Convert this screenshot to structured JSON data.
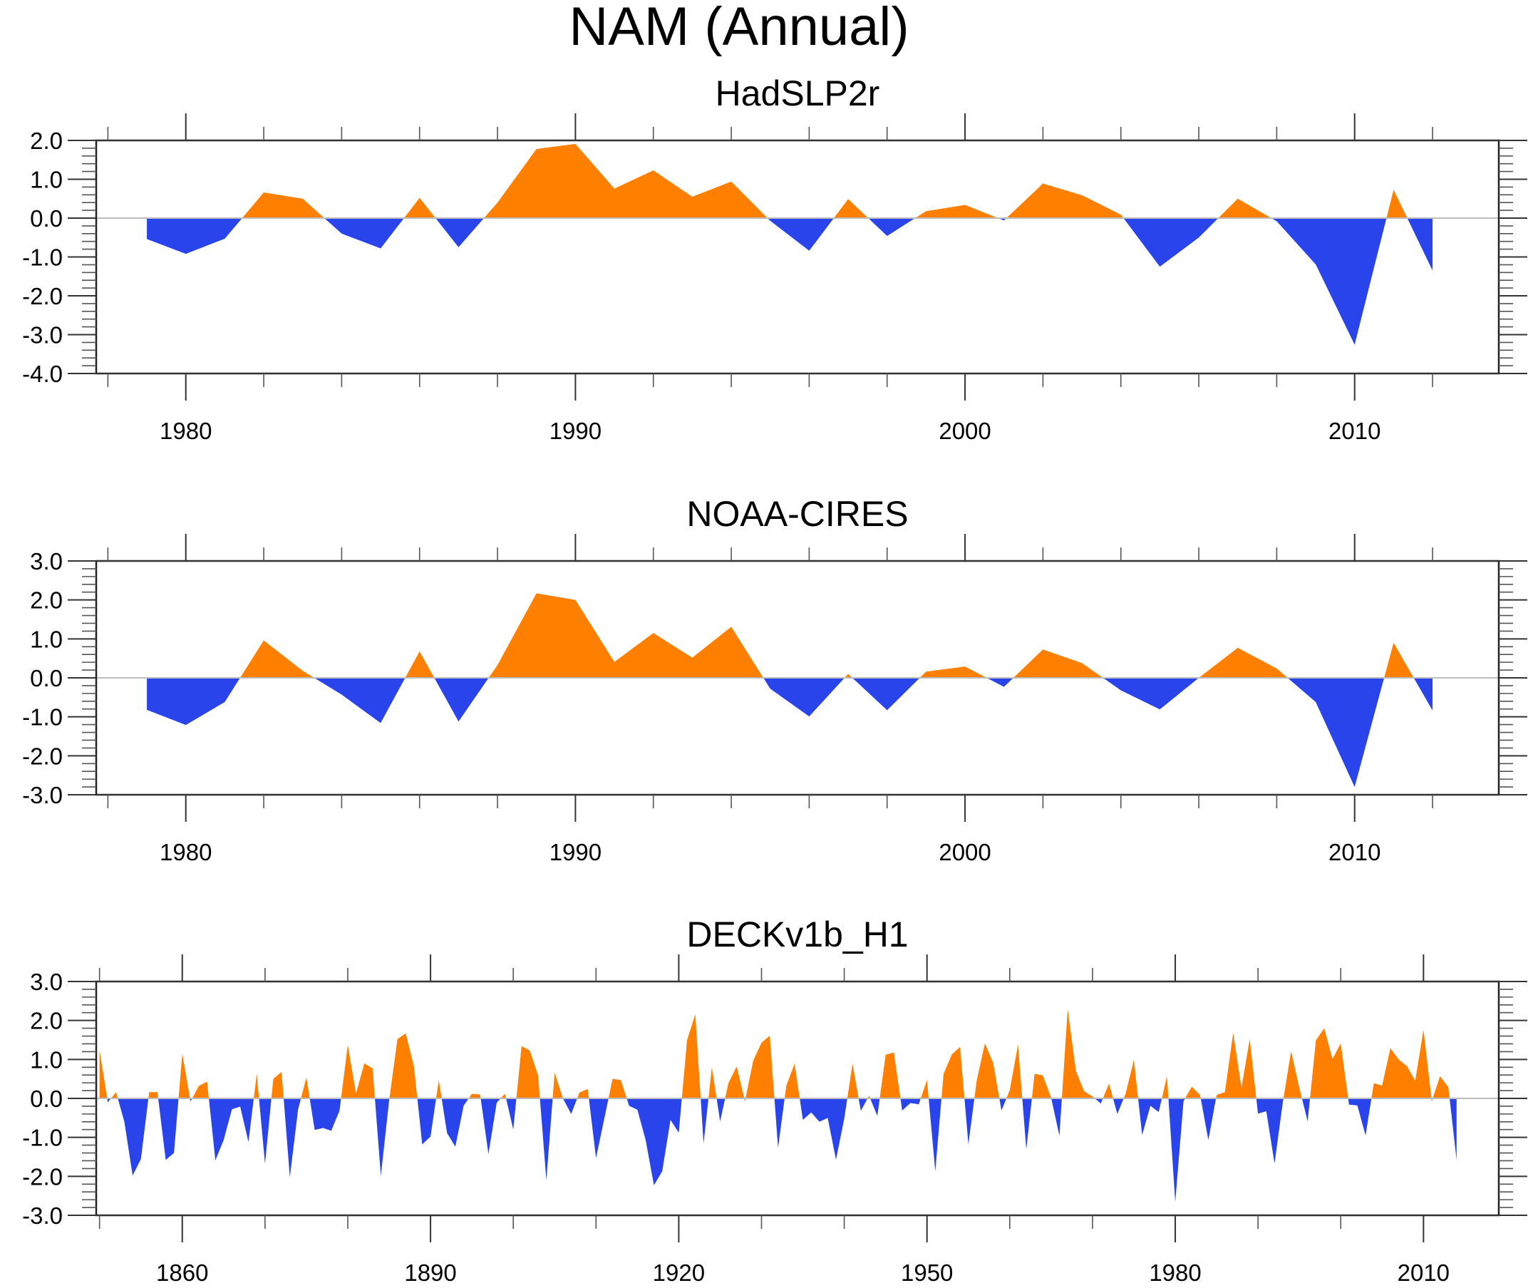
{
  "title": "NAM (Annual)",
  "colors": {
    "positive": "#ff8000",
    "negative": "#2a44eb",
    "zero_line": "#bdbdbd",
    "axis": "#222222"
  },
  "chart_data": [
    {
      "type": "area",
      "title": "HadSLP2r",
      "xlabel": "",
      "ylabel": "",
      "xlim": [
        1977.7,
        2013.7
      ],
      "ylim": [
        -4.0,
        2.0
      ],
      "y_ticks": [
        2.0,
        1.0,
        0.0,
        -1.0,
        -2.0,
        -3.0,
        -4.0
      ],
      "y_tick_labels": [
        "2.0",
        "1.0",
        "0.0",
        "-1.0",
        "-2.0",
        "-3.0",
        "-4.0"
      ],
      "y_minor_step": 0.2,
      "x_major_ticks": [
        1980,
        1990,
        2000,
        2010
      ],
      "x_tick_labels": [
        "1980",
        "1990",
        "2000",
        "2010"
      ],
      "x_minor_step": 2,
      "fill_above_zero": "positive",
      "fill_below_zero": "negative",
      "x": [
        1979,
        1980,
        1981,
        1982,
        1983,
        1984,
        1985,
        1986,
        1987,
        1988,
        1989,
        1990,
        1991,
        1992,
        1993,
        1994,
        1995,
        1996,
        1997,
        1998,
        1999,
        2000,
        2001,
        2002,
        2003,
        2004,
        2005,
        2006,
        2007,
        2008,
        2009,
        2010,
        2011,
        2012
      ],
      "values": [
        -0.54,
        -0.92,
        -0.53,
        0.66,
        0.5,
        -0.4,
        -0.78,
        0.52,
        -0.75,
        0.4,
        1.78,
        1.91,
        0.76,
        1.23,
        0.55,
        0.94,
        -0.07,
        -0.84,
        0.49,
        -0.46,
        0.18,
        0.34,
        -0.06,
        0.89,
        0.59,
        0.09,
        -1.25,
        -0.5,
        0.5,
        -0.08,
        -1.19,
        -3.26,
        0.73,
        -1.35
      ]
    },
    {
      "type": "area",
      "title": "NOAA-CIRES",
      "xlabel": "",
      "ylabel": "",
      "xlim": [
        1977.7,
        2013.7
      ],
      "ylim": [
        -3.0,
        3.0
      ],
      "y_ticks": [
        3.0,
        2.0,
        1.0,
        0.0,
        -1.0,
        -2.0,
        -3.0
      ],
      "y_tick_labels": [
        "3.0",
        "2.0",
        "1.0",
        "0.0",
        "-1.0",
        "-2.0",
        "-3.0"
      ],
      "y_minor_step": 0.2,
      "x_major_ticks": [
        1980,
        1990,
        2000,
        2010
      ],
      "x_tick_labels": [
        "1980",
        "1990",
        "2000",
        "2010"
      ],
      "x_minor_step": 2,
      "fill_above_zero": "positive",
      "fill_below_zero": "negative",
      "x": [
        1979,
        1980,
        1981,
        1982,
        1983,
        1984,
        1985,
        1986,
        1987,
        1988,
        1989,
        1990,
        1991,
        1992,
        1993,
        1994,
        1995,
        1996,
        1997,
        1998,
        1999,
        2000,
        2001,
        2002,
        2003,
        2004,
        2005,
        2006,
        2007,
        2008,
        2009,
        2010,
        2011,
        2012
      ],
      "values": [
        -0.82,
        -1.21,
        -0.62,
        0.96,
        0.18,
        -0.43,
        -1.16,
        0.68,
        -1.12,
        0.33,
        2.17,
        2.0,
        0.41,
        1.15,
        0.52,
        1.31,
        -0.28,
        -0.99,
        0.1,
        -0.83,
        0.16,
        0.29,
        -0.23,
        0.73,
        0.38,
        -0.32,
        -0.81,
        0.0,
        0.77,
        0.24,
        -0.62,
        -2.8,
        0.9,
        -0.84
      ]
    },
    {
      "type": "area",
      "title": "DECKv1b_H1",
      "xlabel": "",
      "ylabel": "",
      "xlim": [
        1849.6,
        2019.1
      ],
      "ylim": [
        -3.0,
        3.0
      ],
      "y_ticks": [
        3.0,
        2.0,
        1.0,
        0.0,
        -1.0,
        -2.0,
        -3.0
      ],
      "y_tick_labels": [
        "3.0",
        "2.0",
        "1.0",
        "0.0",
        "-1.0",
        "-2.0",
        "-3.0"
      ],
      "y_minor_step": 0.2,
      "x_major_ticks": [
        1860,
        1890,
        1920,
        1950,
        1980,
        2010
      ],
      "x_tick_labels": [
        "1860",
        "1890",
        "1920",
        "1950",
        "1980",
        "2010"
      ],
      "x_minor_step": 10,
      "x_minor_start": 1850,
      "fill_above_zero": "positive",
      "fill_below_zero": "negative",
      "x_start": 1850,
      "values": [
        1.24,
        -0.1,
        0.16,
        -0.6,
        -1.98,
        -1.56,
        0.16,
        0.16,
        -1.58,
        -1.4,
        1.15,
        -0.08,
        0.32,
        0.43,
        -1.59,
        -1.07,
        -0.28,
        -0.21,
        -1.12,
        0.63,
        -1.68,
        0.5,
        0.68,
        -2.02,
        -0.28,
        0.54,
        -0.81,
        -0.76,
        -0.83,
        -0.32,
        1.37,
        0.12,
        0.9,
        0.77,
        -1.99,
        -0.05,
        1.52,
        1.67,
        0.82,
        -1.18,
        -0.98,
        0.47,
        -0.89,
        -1.24,
        -0.19,
        0.12,
        0.1,
        -1.43,
        -0.11,
        0.12,
        -0.8,
        1.34,
        1.23,
        0.59,
        -2.1,
        0.66,
        0.0,
        -0.4,
        0.15,
        0.24,
        -1.53,
        -0.52,
        0.5,
        0.47,
        -0.19,
        -0.29,
        -1.07,
        -2.23,
        -1.87,
        -0.55,
        -0.88,
        1.49,
        2.16,
        -1.16,
        0.8,
        -0.59,
        0.39,
        0.82,
        -0.07,
        0.97,
        1.43,
        1.61,
        -1.27,
        0.33,
        0.89,
        -0.55,
        -0.36,
        -0.6,
        -0.5,
        -1.57,
        -0.52,
        0.89,
        -0.32,
        0.07,
        -0.45,
        1.12,
        1.18,
        -0.31,
        -0.12,
        -0.15,
        0.47,
        -1.87,
        0.63,
        1.13,
        1.32,
        -1.18,
        0.45,
        1.41,
        0.91,
        -0.31,
        0.21,
        1.38,
        -1.31,
        0.63,
        0.59,
        0.02,
        -0.96,
        2.29,
        0.7,
        0.18,
        0.05,
        -0.13,
        0.38,
        -0.4,
        0.12,
        0.99,
        -0.94,
        -0.19,
        -0.35,
        0.57,
        -2.66,
        -0.07,
        0.3,
        0.09,
        -1.07,
        0.09,
        0.16,
        1.68,
        0.27,
        1.52,
        -0.39,
        -0.33,
        -1.67,
        -0.1,
        1.21,
        0.27,
        -0.59,
        1.49,
        1.8,
        1.01,
        1.41,
        -0.16,
        -0.18,
        -0.95,
        0.39,
        0.33,
        1.29,
        1.0,
        0.83,
        0.45,
        1.76,
        -0.07,
        0.57,
        0.29,
        -1.59
      ]
    }
  ]
}
